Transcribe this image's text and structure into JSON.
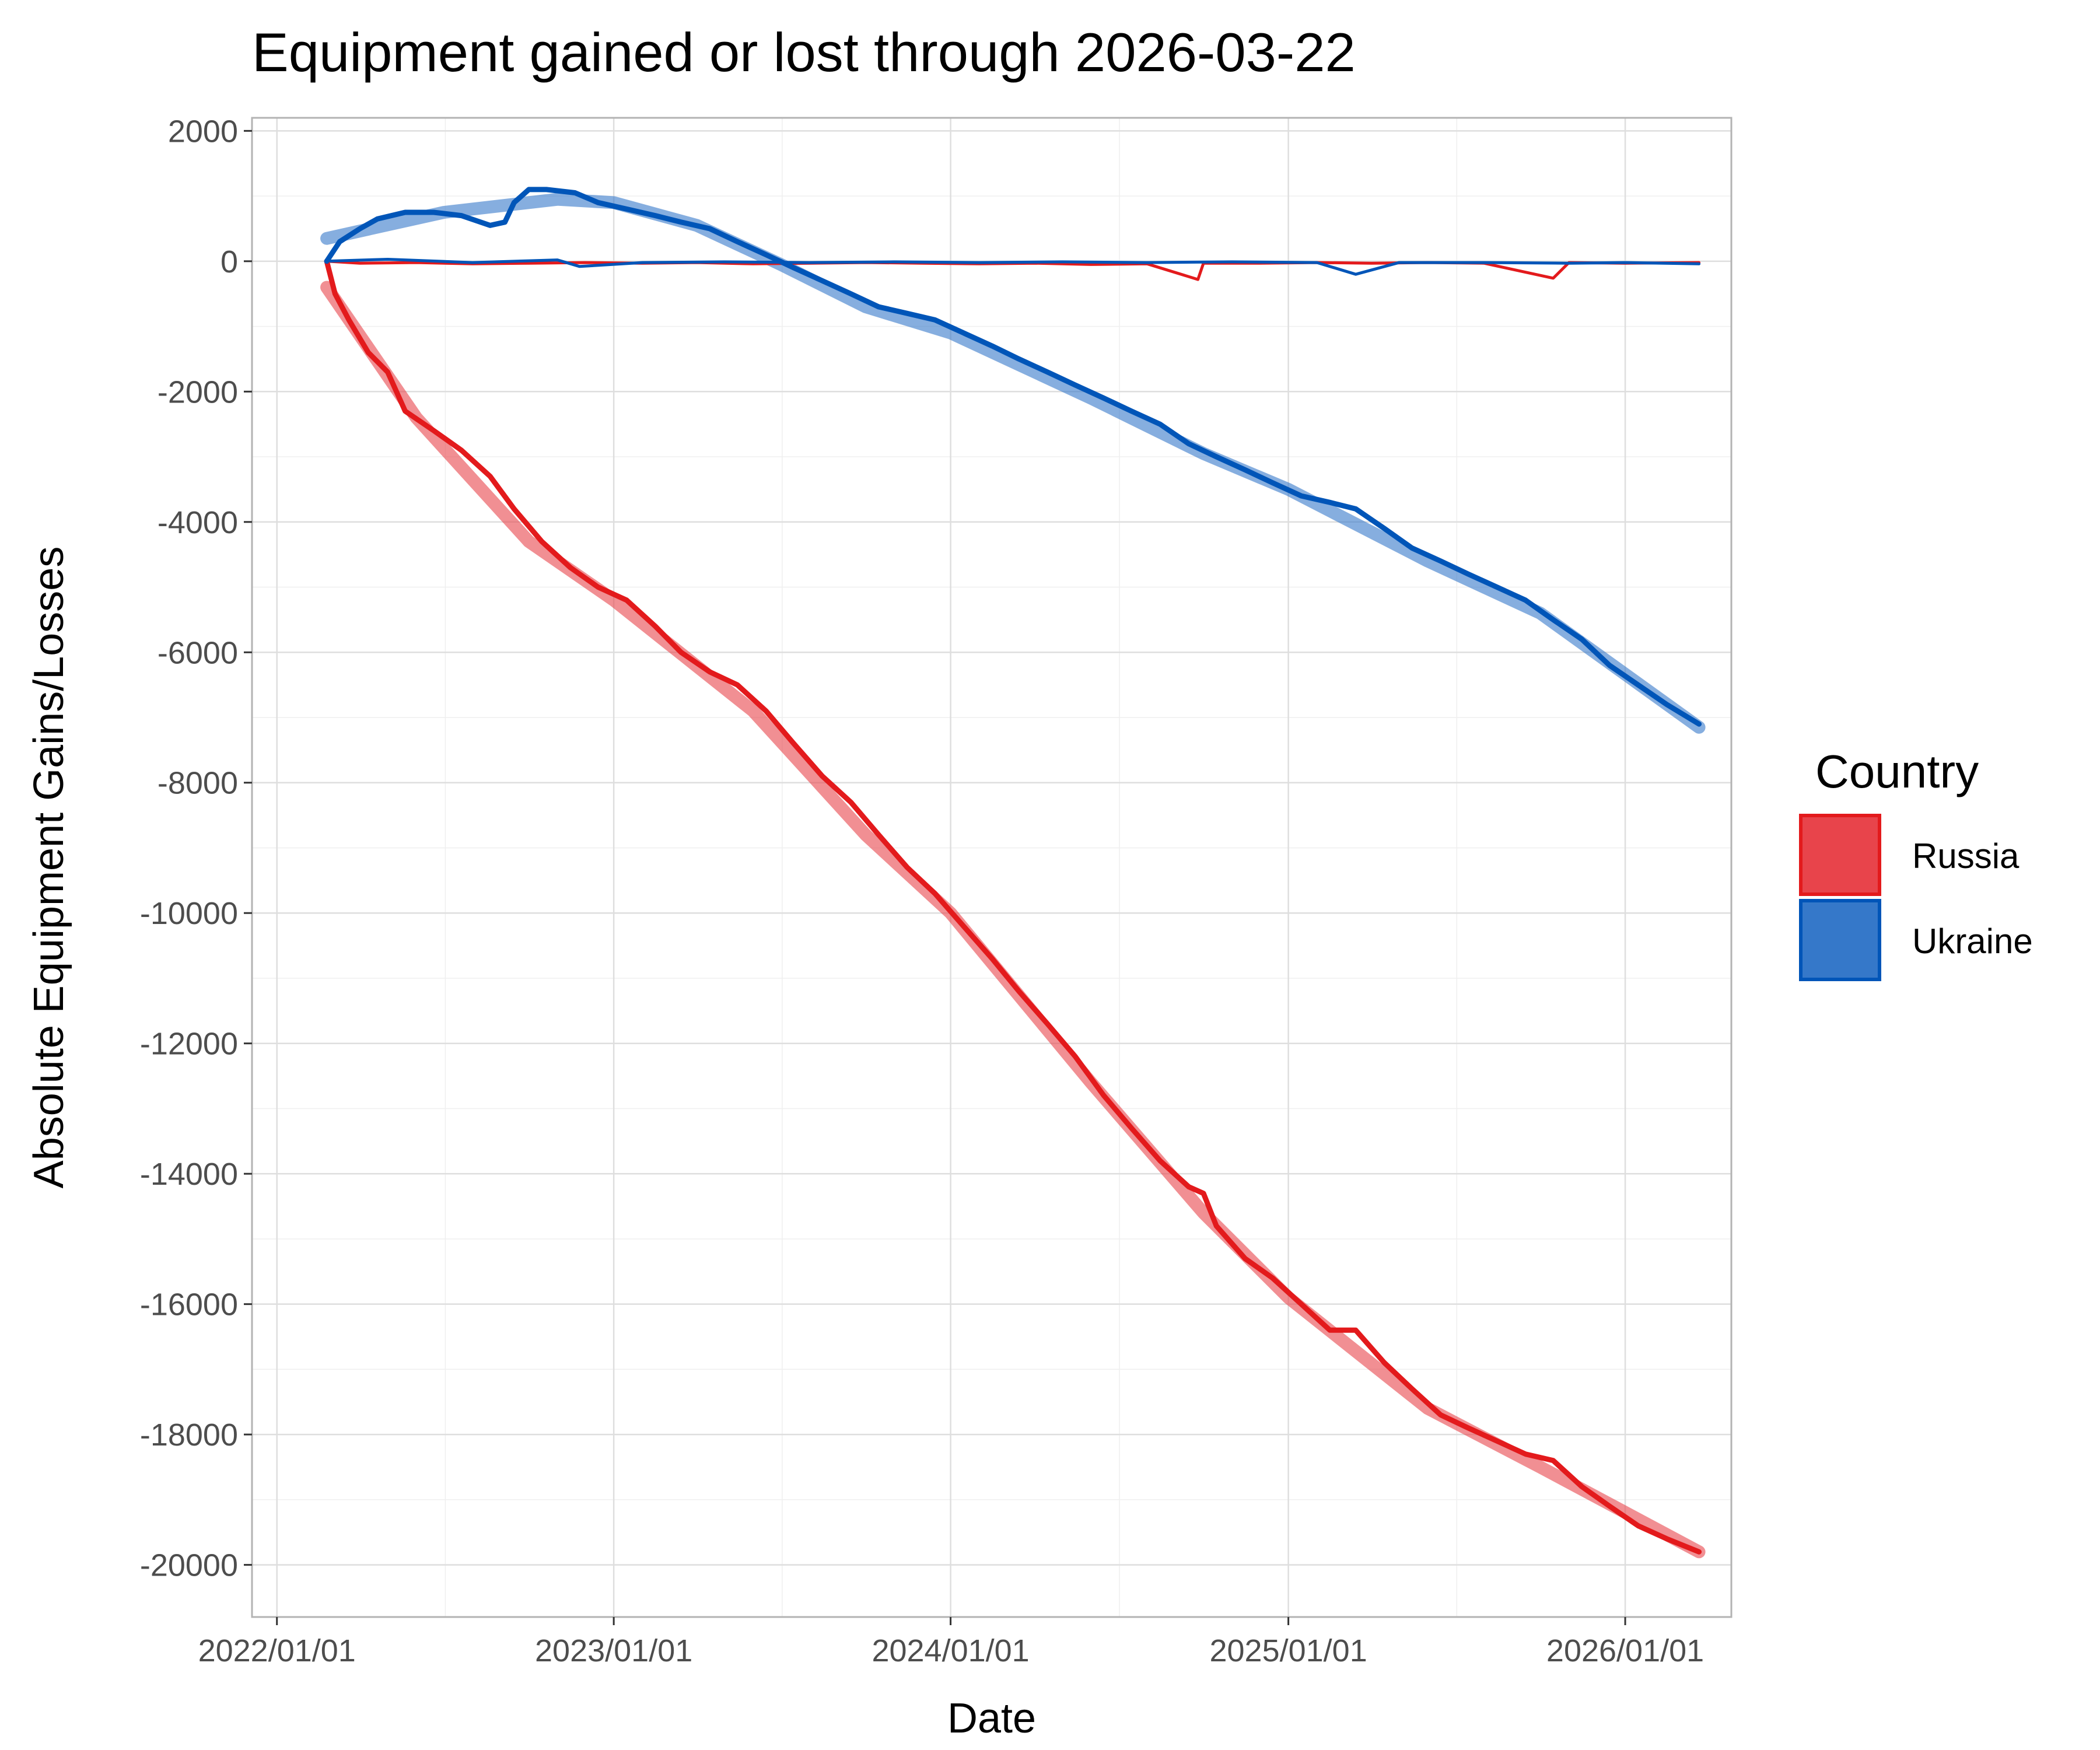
{
  "chart_data": {
    "type": "line",
    "title": "Equipment gained or lost through 2026-03-22",
    "xlabel": "Date",
    "ylabel": "Absolute Equipment Gains/Losses",
    "x_tick_labels": [
      "2022/01/01",
      "2023/01/01",
      "2024/01/01",
      "2025/01/01",
      "2026/01/01"
    ],
    "x_ticks": [
      "2022-01-01",
      "2023-01-01",
      "2024-01-01",
      "2025-01-01",
      "2026-01-01"
    ],
    "xlim": [
      "2021-12-05",
      "2026-04-26"
    ],
    "ylim": [
      -20800,
      2200
    ],
    "y_ticks": [
      2000,
      0,
      -2000,
      -4000,
      -6000,
      -8000,
      -10000,
      -12000,
      -14000,
      -16000,
      -18000,
      -20000
    ],
    "y_tick_labels": [
      "2000",
      "0",
      "-2000",
      "-4000",
      "-6000",
      "-8000",
      "-10000",
      "-12000",
      "-14000",
      "-16000",
      "-18000",
      "-20000"
    ],
    "grid": true,
    "legend": {
      "title": "Country",
      "position": "right",
      "entries": [
        {
          "label": "Russia",
          "color": "#e31a1c",
          "fill": "#e8444b"
        },
        {
          "label": "Ukraine",
          "color": "#0055b8",
          "fill": "#3578c9"
        }
      ]
    },
    "series": [
      {
        "name": "Russia",
        "kind": "cumulative",
        "color": "#e31a1c",
        "points": [
          [
            "2022-02-24",
            0
          ],
          [
            "2022-03-05",
            -500
          ],
          [
            "2022-03-20",
            -900
          ],
          [
            "2022-04-10",
            -1400
          ],
          [
            "2022-05-01",
            -1700
          ],
          [
            "2022-05-20",
            -2300
          ],
          [
            "2022-06-20",
            -2600
          ],
          [
            "2022-07-20",
            -2900
          ],
          [
            "2022-08-20",
            -3300
          ],
          [
            "2022-09-15",
            -3800
          ],
          [
            "2022-10-15",
            -4300
          ],
          [
            "2022-11-15",
            -4700
          ],
          [
            "2022-12-15",
            -5000
          ],
          [
            "2023-01-15",
            -5200
          ],
          [
            "2023-02-15",
            -5600
          ],
          [
            "2023-03-15",
            -6000
          ],
          [
            "2023-04-15",
            -6300
          ],
          [
            "2023-05-15",
            -6500
          ],
          [
            "2023-06-15",
            -6900
          ],
          [
            "2023-07-15",
            -7400
          ],
          [
            "2023-08-15",
            -7900
          ],
          [
            "2023-09-15",
            -8300
          ],
          [
            "2023-10-15",
            -8800
          ],
          [
            "2023-11-15",
            -9300
          ],
          [
            "2023-12-15",
            -9700
          ],
          [
            "2024-01-15",
            -10200
          ],
          [
            "2024-02-15",
            -10700
          ],
          [
            "2024-03-15",
            -11200
          ],
          [
            "2024-04-15",
            -11700
          ],
          [
            "2024-05-15",
            -12200
          ],
          [
            "2024-06-15",
            -12800
          ],
          [
            "2024-07-15",
            -13300
          ],
          [
            "2024-08-15",
            -13800
          ],
          [
            "2024-09-15",
            -14200
          ],
          [
            "2024-10-01",
            -14300
          ],
          [
            "2024-10-15",
            -14800
          ],
          [
            "2024-11-15",
            -15300
          ],
          [
            "2024-12-15",
            -15600
          ],
          [
            "2025-01-15",
            -16000
          ],
          [
            "2025-02-15",
            -16400
          ],
          [
            "2025-03-15",
            -16400
          ],
          [
            "2025-04-15",
            -16900
          ],
          [
            "2025-05-15",
            -17300
          ],
          [
            "2025-06-15",
            -17700
          ],
          [
            "2025-07-15",
            -17900
          ],
          [
            "2025-08-15",
            -18100
          ],
          [
            "2025-09-15",
            -18300
          ],
          [
            "2025-10-15",
            -18400
          ],
          [
            "2025-11-15",
            -18800
          ],
          [
            "2025-12-15",
            -19100
          ],
          [
            "2026-01-15",
            -19400
          ],
          [
            "2026-02-15",
            -19600
          ],
          [
            "2026-03-22",
            -19800
          ]
        ]
      },
      {
        "name": "Russia",
        "kind": "daily",
        "color": "#e31a1c",
        "points": [
          [
            "2022-02-24",
            0
          ],
          [
            "2022-04-01",
            -30
          ],
          [
            "2022-06-01",
            -20
          ],
          [
            "2022-08-01",
            -40
          ],
          [
            "2022-10-01",
            -30
          ],
          [
            "2022-12-01",
            -20
          ],
          [
            "2023-02-01",
            -30
          ],
          [
            "2023-04-01",
            -20
          ],
          [
            "2023-06-01",
            -40
          ],
          [
            "2023-08-01",
            -30
          ],
          [
            "2023-10-01",
            -20
          ],
          [
            "2023-12-01",
            -30
          ],
          [
            "2024-02-01",
            -40
          ],
          [
            "2024-04-01",
            -30
          ],
          [
            "2024-06-01",
            -50
          ],
          [
            "2024-08-01",
            -40
          ],
          [
            "2024-09-25",
            -280
          ],
          [
            "2024-10-01",
            -30
          ],
          [
            "2024-12-01",
            -30
          ],
          [
            "2025-02-01",
            -20
          ],
          [
            "2025-04-01",
            -30
          ],
          [
            "2025-06-01",
            -20
          ],
          [
            "2025-08-01",
            -30
          ],
          [
            "2025-10-15",
            -260
          ],
          [
            "2025-11-01",
            -20
          ],
          [
            "2026-01-01",
            -30
          ],
          [
            "2026-03-22",
            -20
          ]
        ]
      },
      {
        "name": "Ukraine",
        "kind": "cumulative",
        "color": "#0055b8",
        "points": [
          [
            "2022-02-24",
            0
          ],
          [
            "2022-03-10",
            300
          ],
          [
            "2022-04-01",
            500
          ],
          [
            "2022-04-20",
            650
          ],
          [
            "2022-05-20",
            750
          ],
          [
            "2022-06-20",
            750
          ],
          [
            "2022-07-20",
            700
          ],
          [
            "2022-08-20",
            550
          ],
          [
            "2022-09-05",
            600
          ],
          [
            "2022-09-15",
            900
          ],
          [
            "2022-10-01",
            1100
          ],
          [
            "2022-10-20",
            1100
          ],
          [
            "2022-11-20",
            1050
          ],
          [
            "2022-12-15",
            900
          ],
          [
            "2023-01-15",
            800
          ],
          [
            "2023-02-15",
            700
          ],
          [
            "2023-03-15",
            600
          ],
          [
            "2023-04-15",
            500
          ],
          [
            "2023-05-15",
            300
          ],
          [
            "2023-06-15",
            100
          ],
          [
            "2023-07-15",
            -100
          ],
          [
            "2023-08-15",
            -300
          ],
          [
            "2023-09-15",
            -500
          ],
          [
            "2023-10-15",
            -700
          ],
          [
            "2023-11-15",
            -800
          ],
          [
            "2023-12-15",
            -900
          ],
          [
            "2024-01-15",
            -1100
          ],
          [
            "2024-02-15",
            -1300
          ],
          [
            "2024-03-15",
            -1500
          ],
          [
            "2024-04-15",
            -1700
          ],
          [
            "2024-05-15",
            -1900
          ],
          [
            "2024-06-15",
            -2100
          ],
          [
            "2024-07-15",
            -2300
          ],
          [
            "2024-08-15",
            -2500
          ],
          [
            "2024-09-15",
            -2800
          ],
          [
            "2024-10-15",
            -3000
          ],
          [
            "2024-11-15",
            -3200
          ],
          [
            "2024-12-15",
            -3400
          ],
          [
            "2025-01-15",
            -3600
          ],
          [
            "2025-02-15",
            -3700
          ],
          [
            "2025-03-15",
            -3800
          ],
          [
            "2025-04-15",
            -4100
          ],
          [
            "2025-05-15",
            -4400
          ],
          [
            "2025-06-15",
            -4600
          ],
          [
            "2025-07-15",
            -4800
          ],
          [
            "2025-08-15",
            -5000
          ],
          [
            "2025-09-15",
            -5200
          ],
          [
            "2025-10-15",
            -5500
          ],
          [
            "2025-11-15",
            -5800
          ],
          [
            "2025-12-15",
            -6200
          ],
          [
            "2026-01-15",
            -6500
          ],
          [
            "2026-02-15",
            -6800
          ],
          [
            "2026-03-22",
            -7100
          ]
        ]
      },
      {
        "name": "Ukraine",
        "kind": "daily",
        "color": "#0055b8",
        "points": [
          [
            "2022-02-24",
            0
          ],
          [
            "2022-05-01",
            30
          ],
          [
            "2022-08-01",
            -20
          ],
          [
            "2022-11-01",
            20
          ],
          [
            "2022-11-25",
            -80
          ],
          [
            "2023-02-01",
            -20
          ],
          [
            "2023-05-01",
            -10
          ],
          [
            "2023-08-01",
            -20
          ],
          [
            "2023-11-01",
            -10
          ],
          [
            "2024-02-01",
            -20
          ],
          [
            "2024-05-01",
            -10
          ],
          [
            "2024-08-01",
            -20
          ],
          [
            "2024-11-01",
            -10
          ],
          [
            "2025-02-01",
            -20
          ],
          [
            "2025-03-15",
            -200
          ],
          [
            "2025-05-01",
            -20
          ],
          [
            "2025-08-01",
            -20
          ],
          [
            "2025-11-01",
            -30
          ],
          [
            "2026-01-01",
            -20
          ],
          [
            "2026-03-22",
            -40
          ]
        ]
      },
      {
        "name": "Russia",
        "kind": "trend",
        "color": "#e8444b",
        "points": [
          [
            "2022-02-24",
            -400
          ],
          [
            "2022-06-01",
            -2400
          ],
          [
            "2022-10-01",
            -4300
          ],
          [
            "2023-01-01",
            -5200
          ],
          [
            "2023-06-01",
            -6900
          ],
          [
            "2023-10-01",
            -8800
          ],
          [
            "2024-01-01",
            -10000
          ],
          [
            "2024-06-01",
            -12600
          ],
          [
            "2024-10-01",
            -14600
          ],
          [
            "2025-01-01",
            -15900
          ],
          [
            "2025-06-01",
            -17600
          ],
          [
            "2025-10-01",
            -18500
          ],
          [
            "2026-03-22",
            -19800
          ]
        ]
      },
      {
        "name": "Ukraine",
        "kind": "trend",
        "color": "#3578c9",
        "points": [
          [
            "2022-02-24",
            350
          ],
          [
            "2022-07-01",
            750
          ],
          [
            "2022-11-01",
            950
          ],
          [
            "2023-01-01",
            900
          ],
          [
            "2023-04-01",
            550
          ],
          [
            "2023-07-01",
            -50
          ],
          [
            "2023-10-01",
            -700
          ],
          [
            "2024-01-01",
            -1100
          ],
          [
            "2024-06-01",
            -2100
          ],
          [
            "2024-10-01",
            -2950
          ],
          [
            "2025-01-01",
            -3500
          ],
          [
            "2025-06-01",
            -4600
          ],
          [
            "2025-10-01",
            -5400
          ],
          [
            "2026-03-22",
            -7150
          ]
        ]
      }
    ]
  }
}
